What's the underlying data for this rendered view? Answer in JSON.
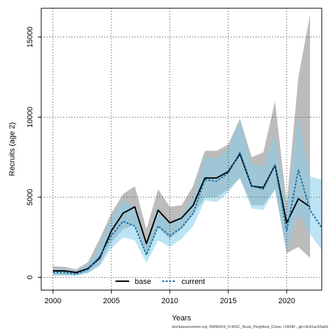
{
  "chart_data": {
    "type": "line",
    "xlabel": "Years",
    "ylabel": "Recruits (age 2)",
    "xlim": [
      1999,
      2023
    ],
    "ylim": [
      -800,
      16800
    ],
    "x_ticks": [
      2000,
      2005,
      2010,
      2015,
      2020
    ],
    "y_ticks": [
      0,
      5000,
      10000,
      15000
    ],
    "grid": true,
    "legend_position": "bottom-center",
    "x": [
      2000,
      2001,
      2002,
      2003,
      2004,
      2005,
      2006,
      2007,
      2008,
      2009,
      2010,
      2011,
      2012,
      2013,
      2014,
      2015,
      2016,
      2017,
      2018,
      2019,
      2020,
      2021,
      2022,
      2023
    ],
    "series": [
      {
        "name": "base",
        "color": "#000000",
        "band_color": "#a6a6a6",
        "line_style": "solid",
        "values": [
          400,
          400,
          300,
          550,
          1200,
          2900,
          4000,
          4400,
          2100,
          4200,
          3400,
          3700,
          4500,
          6200,
          6200,
          6600,
          7700,
          5700,
          5600,
          7000,
          3400,
          4900,
          4400,
          null
        ],
        "lower": [
          150,
          150,
          150,
          300,
          800,
          2200,
          3000,
          3300,
          1300,
          3100,
          2400,
          3000,
          3900,
          5000,
          5000,
          5500,
          6200,
          4500,
          4500,
          5500,
          1500,
          1900,
          1200,
          null
        ],
        "upper": [
          700,
          650,
          500,
          950,
          2400,
          4000,
          5200,
          5700,
          3000,
          5500,
          4400,
          4500,
          5700,
          7900,
          7900,
          8300,
          9900,
          7500,
          7800,
          11000,
          4600,
          12500,
          16400,
          null
        ]
      },
      {
        "name": "current",
        "color": "#1a6fa3",
        "band_color": "#87ceeb",
        "line_style": "dashed",
        "values": [
          300,
          300,
          200,
          500,
          1300,
          2600,
          3500,
          3200,
          1400,
          3200,
          2600,
          3100,
          4000,
          6100,
          6000,
          6500,
          7800,
          5700,
          5500,
          7000,
          2900,
          6700,
          4200,
          3100
        ],
        "lower": [
          100,
          100,
          80,
          250,
          700,
          1800,
          2500,
          2300,
          900,
          2300,
          1900,
          2400,
          3200,
          4800,
          4700,
          5300,
          6200,
          4300,
          4200,
          5500,
          1700,
          4000,
          2700,
          1700
        ],
        "upper": [
          550,
          550,
          400,
          800,
          2000,
          3700,
          4800,
          4300,
          2100,
          4300,
          3300,
          3900,
          5000,
          7500,
          7400,
          8000,
          9800,
          7100,
          6900,
          8900,
          4200,
          10000,
          6300,
          6100
        ]
      }
    ]
  },
  "footer": "stockassessment.org, NWW024_S-WSC_Nuuk_PingWest_Clone, r18340 , git:c9c81ac53a0d"
}
